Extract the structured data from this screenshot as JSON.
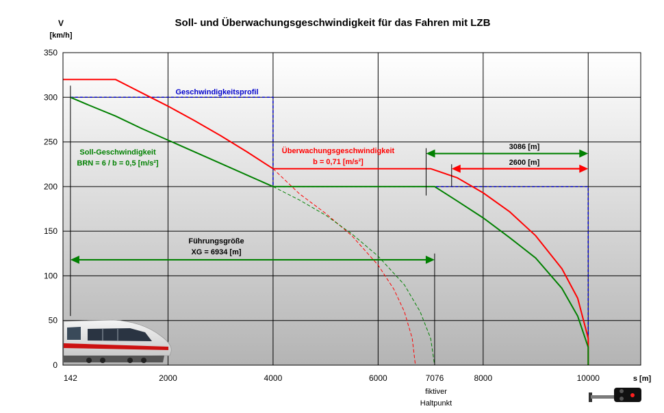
{
  "chart_data": {
    "type": "line",
    "title": "Soll- und Überwachungsgeschwindigkeit für das Fahren mit LZB",
    "ylabel_line1": "V",
    "ylabel_line2": "[km/h]",
    "xlabel": "s [m]",
    "xlim": [
      0,
      11000
    ],
    "ylim": [
      0,
      350
    ],
    "grid": true,
    "x_ticks": [
      2000,
      4000,
      6000,
      8000,
      10000
    ],
    "x_tick_labels": [
      "2000",
      "4000",
      "6000",
      "8000",
      "10000"
    ],
    "x_extra_ticks": [
      142,
      7076
    ],
    "x_extra_tick_labels": [
      "142",
      "7076"
    ],
    "y_ticks": [
      0,
      50,
      100,
      150,
      200,
      250,
      300,
      350
    ],
    "y_tick_labels": [
      "0",
      "50",
      "100",
      "150",
      "200",
      "250",
      "300",
      "350"
    ],
    "colors": {
      "soll": "#008000",
      "ueberwachung": "#ff0000",
      "profil": "#0000cc",
      "grid": "#000000",
      "text": "#000000"
    },
    "series": [
      {
        "key": "profil",
        "color": "#0000cc",
        "dashed": true,
        "x": [
          142,
          4000,
          4000,
          10000,
          10000
        ],
        "y": [
          300,
          300,
          200,
          200,
          0
        ]
      },
      {
        "key": "ueberwachung",
        "color": "#ff0000",
        "dashed": false,
        "x": [
          0,
          1000,
          1500,
          2000,
          2500,
          3000,
          3500,
          4000,
          4000,
          7000,
          7500,
          8000,
          8500,
          9000,
          9500,
          9800,
          10000,
          10000
        ],
        "y": [
          320,
          320,
          305,
          290,
          274,
          257,
          239,
          220,
          220,
          220,
          210,
          193,
          172,
          145,
          108,
          75,
          30,
          0
        ]
      },
      {
        "key": "ueberwachung_fortsetzung",
        "color": "#ff0000",
        "dashed": true,
        "x": [
          4000,
          4500,
          5000,
          5500,
          6000,
          6300,
          6500,
          6650,
          6710
        ],
        "y": [
          220,
          192,
          170,
          145,
          112,
          85,
          60,
          30,
          0
        ]
      },
      {
        "key": "soll",
        "color": "#008000",
        "dashed": false,
        "x": [
          142,
          500,
          1000,
          1500,
          2000,
          2500,
          3000,
          3500,
          4000,
          7076,
          7500,
          8000,
          8500,
          9000,
          9500,
          9800,
          10000,
          10000
        ],
        "y": [
          300,
          291,
          279,
          265,
          252,
          239,
          226,
          213,
          200,
          200,
          184,
          165,
          143,
          120,
          86,
          55,
          20,
          0
        ]
      },
      {
        "key": "soll_fortsetzung",
        "color": "#008000",
        "dashed": true,
        "x": [
          4000,
          4500,
          5000,
          5500,
          6000,
          6500,
          6800,
          7000,
          7076
        ],
        "y": [
          200,
          185,
          168,
          147,
          122,
          90,
          60,
          30,
          0
        ]
      }
    ],
    "annotations": {
      "geschwindigkeitsprofil": "Geschwindigkeitsprofil",
      "soll_line1": "Soll-Geschwindigkeit",
      "soll_line2": "BRN = 6 / b = 0,5 [m/s²]",
      "ueberwachung_line1": "Überwachungsgeschwindigkeit",
      "ueberwachung_line2": "b = 0,71 [m/s²]",
      "fuehrung_line1": "Führungsgröße",
      "fuehrung_line2": "XG = 6934 [m]",
      "dist_3086": "3086 [m]",
      "dist_2600": "2600 [m]",
      "haltpunkt_line1": "fiktiver",
      "haltpunkt_line2": "Haltpunkt"
    },
    "arrows": {
      "fuehrung": {
        "x1": 142,
        "x2": 7076,
        "y": 118,
        "color": "#008000"
      },
      "dist_3086": {
        "x1": 6914,
        "x2": 10000,
        "y": 237,
        "color": "#008000"
      },
      "dist_2600": {
        "x1": 7400,
        "x2": 10000,
        "y": 220,
        "color": "#ff0000"
      }
    },
    "markers": [
      {
        "x": 142,
        "y_from": 313,
        "y_to": 55
      },
      {
        "x": 6914,
        "y_from": 243,
        "y_to": 190
      },
      {
        "x": 7400,
        "y_from": 225,
        "y_to": 200
      },
      {
        "x": 7076,
        "y_from": 125,
        "y_to": 0
      }
    ]
  }
}
